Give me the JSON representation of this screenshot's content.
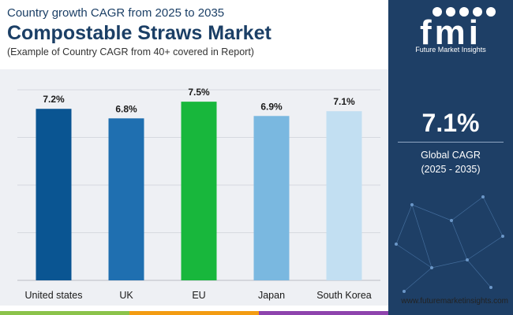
{
  "header": {
    "subtitle": "Country growth CAGR from 2025 to 2035",
    "title": "Compostable Straws Market",
    "note": "(Example of Country CAGR from 40+ covered in Report)"
  },
  "sidebar": {
    "logo_text": "fmi",
    "logo_subtext": "Future Market Insights",
    "cagr_value": "7.1%",
    "cagr_label_1": "Global CAGR",
    "cagr_label_2": "(2025 - 2035)"
  },
  "footer": {
    "website": "www.futuremarketinsights.com",
    "bar_colors": [
      "#8bc34a",
      "#f39c12",
      "#8e44ad"
    ]
  },
  "colors": {
    "navy": "#1e3f66",
    "panel": "#eef0f4"
  },
  "chart_data": {
    "type": "bar",
    "categories": [
      "United states",
      "UK",
      "EU",
      "Japan",
      "South Korea"
    ],
    "values": [
      7.2,
      6.8,
      7.5,
      6.9,
      7.1
    ],
    "value_labels": [
      "7.2%",
      "6.8%",
      "7.5%",
      "6.9%",
      "7.1%"
    ],
    "colors": [
      "#0a5592",
      "#1f6fb0",
      "#18b73c",
      "#7ab8e0",
      "#c2dff2"
    ],
    "title": "",
    "xlabel": "",
    "ylabel": "",
    "ylim": [
      0,
      8
    ],
    "grid": true,
    "legend": "none"
  }
}
